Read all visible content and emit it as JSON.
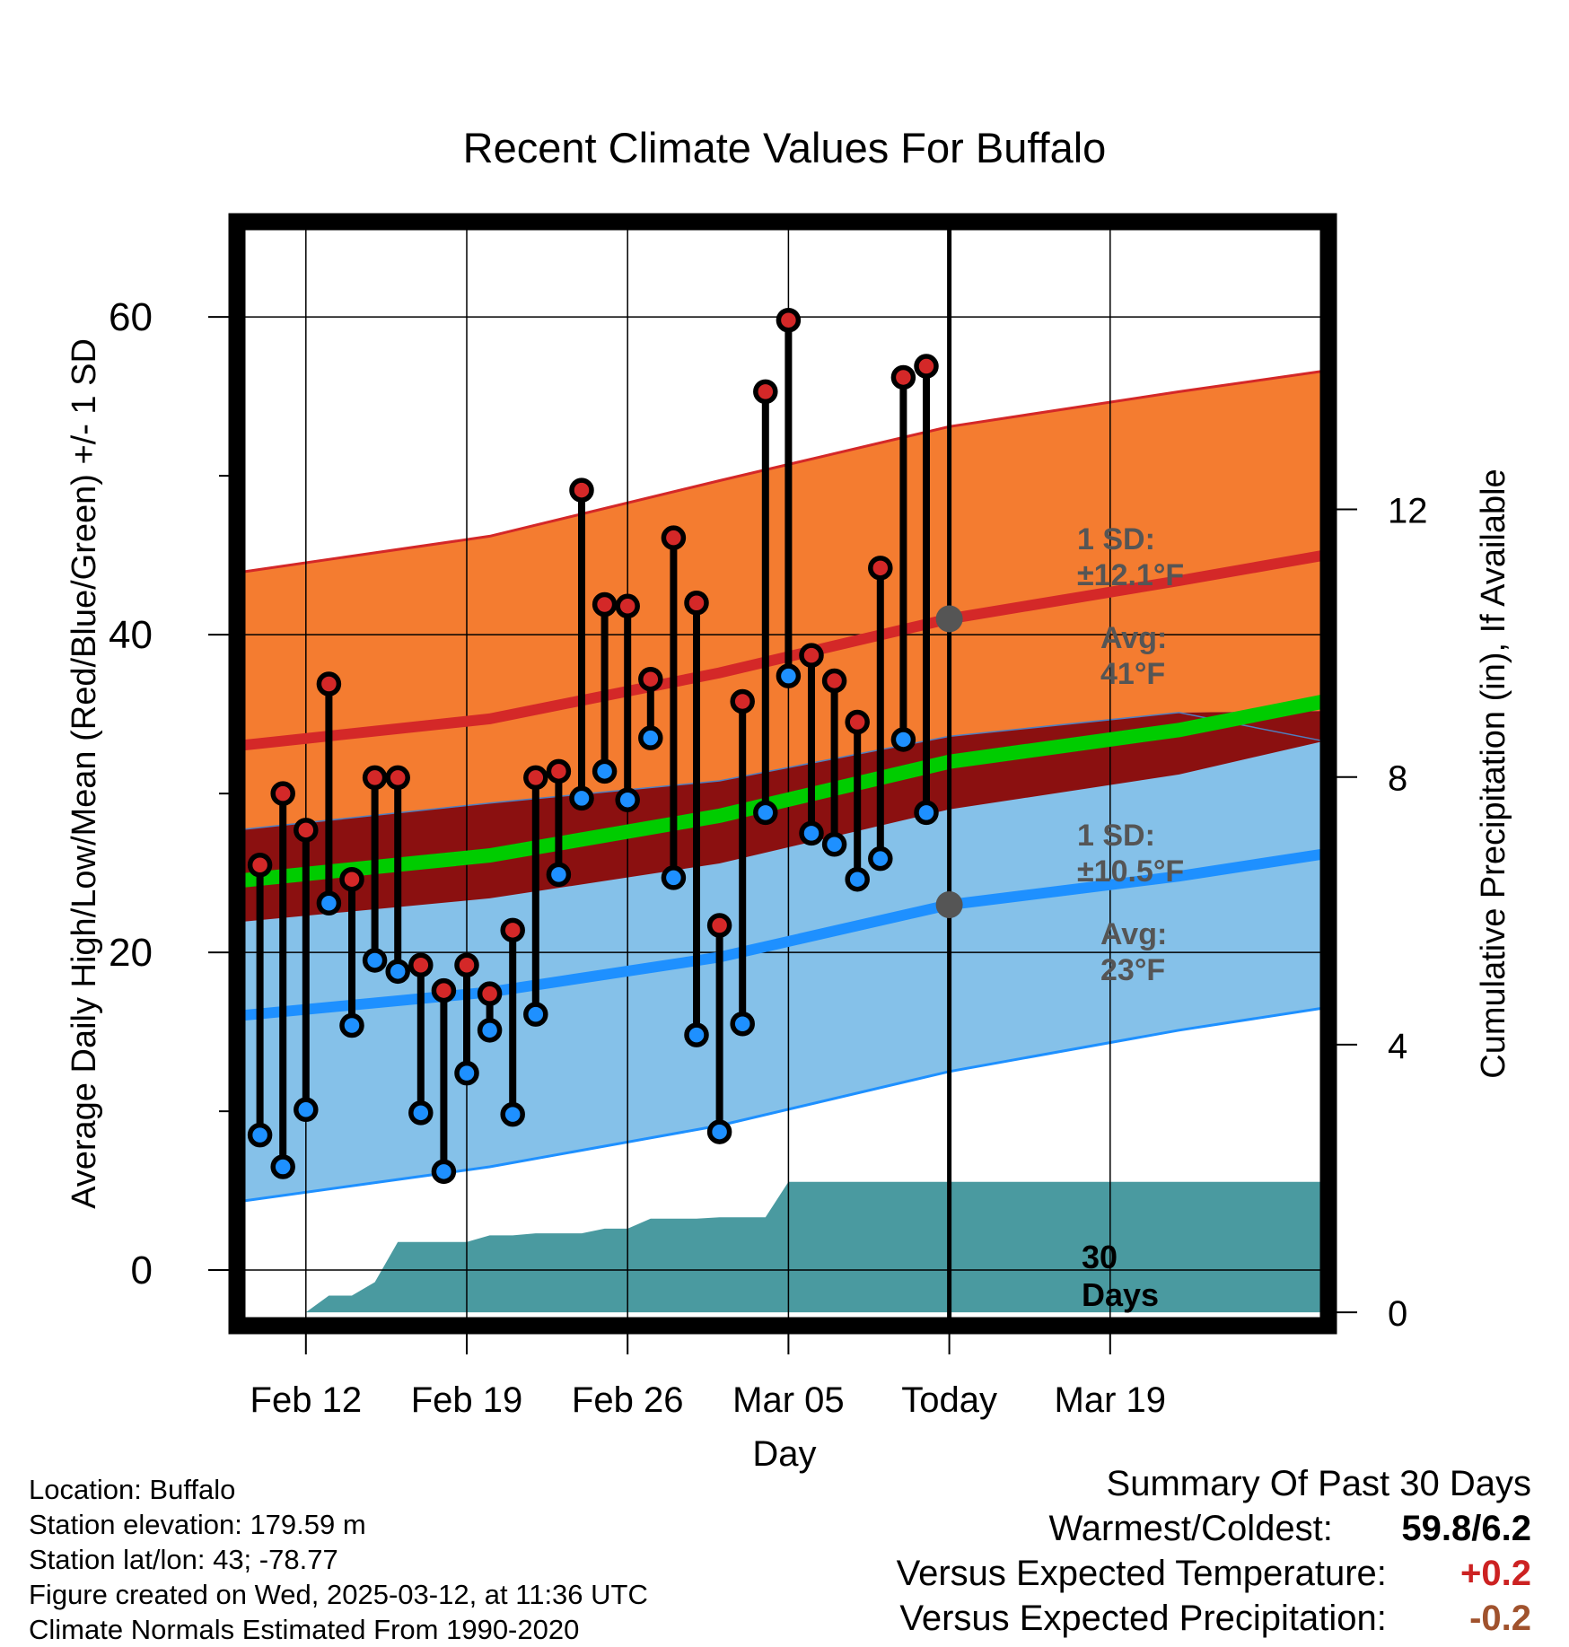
{
  "chart_data": {
    "type": "line",
    "title": "Recent Climate Values For Buffalo",
    "xlabel": "Day",
    "ylabel": "Average Daily High/Low/Mean (Red/Blue/Green) +/- 1 SD",
    "y2label": "Cumulative Precipitation (in), If Available",
    "xlim": [
      -1.0,
      46.5
    ],
    "ylim": [
      -3.5,
      66
    ],
    "y2lim": [
      -0.2,
      16.3
    ],
    "yticks": [
      0,
      20,
      40,
      60
    ],
    "yminorticks": [
      10,
      30,
      50
    ],
    "y2ticks": [
      0,
      4,
      8,
      12
    ],
    "xticks": [
      {
        "day": 2,
        "label": "Feb 12"
      },
      {
        "day": 9,
        "label": "Feb 19"
      },
      {
        "day": 16,
        "label": "Feb 26"
      },
      {
        "day": 23,
        "label": "Mar 05"
      },
      {
        "day": 30,
        "label": "Today"
      },
      {
        "day": 37,
        "label": "Mar 19"
      }
    ],
    "grid": true,
    "colors": {
      "high_band": "#f47c30",
      "high_avg_line": "#d42828",
      "low_band": "#85c1e9",
      "low_avg_line": "#1e90ff",
      "overlap_band": "#8b1010",
      "mean_line": "#00cc00",
      "precip": "#4a9aa0",
      "high_marker": "#d42828",
      "low_marker": "#1e90ff",
      "annotation": "#555555",
      "plus": "#cc2222",
      "minus": "#a0522d"
    },
    "normals": {
      "x": [
        -1,
        10,
        20,
        30,
        40,
        46.3
      ],
      "high_avg": [
        33.0,
        34.7,
        37.6,
        41.0,
        43.4,
        45.0
      ],
      "high_upper": [
        43.9,
        46.2,
        49.7,
        53.1,
        55.3,
        56.6
      ],
      "high_lower": [
        27.7,
        29.4,
        30.8,
        33.6,
        35.1,
        35.2
      ],
      "low_avg": [
        16.0,
        17.5,
        19.7,
        23.0,
        24.8,
        26.2
      ],
      "low_upper": [
        27.7,
        29.4,
        30.8,
        33.6,
        35.1,
        33.3
      ],
      "low_lower": [
        4.3,
        6.5,
        9.1,
        12.5,
        15.1,
        16.5
      ],
      "mean": [
        24.5,
        26.1,
        28.6,
        32.0,
        34.0,
        35.8
      ],
      "overlap_lower": [
        21.9,
        23.4,
        25.6,
        29.0,
        31.2,
        33.3
      ]
    },
    "series": [
      {
        "name": "High",
        "x": [
          0,
          1,
          2,
          3,
          4,
          5,
          6,
          7,
          8,
          9,
          10,
          11,
          12,
          13,
          14,
          15,
          16,
          17,
          18,
          19,
          20,
          21,
          22,
          23,
          24,
          25,
          26,
          27,
          28,
          29
        ],
        "values": [
          25.5,
          30.0,
          27.7,
          36.9,
          24.6,
          31.0,
          31.0,
          19.2,
          17.6,
          19.2,
          17.4,
          21.4,
          31.0,
          31.4,
          49.1,
          41.9,
          41.8,
          37.2,
          46.1,
          42.0,
          21.7,
          35.8,
          55.3,
          59.8,
          38.7,
          37.1,
          34.5,
          44.2,
          56.2,
          56.9
        ]
      },
      {
        "name": "Low",
        "x": [
          0,
          1,
          2,
          3,
          4,
          5,
          6,
          7,
          8,
          9,
          10,
          11,
          12,
          13,
          14,
          15,
          16,
          17,
          18,
          19,
          20,
          21,
          22,
          23,
          24,
          25,
          26,
          27,
          28,
          29
        ],
        "values": [
          8.5,
          6.5,
          10.1,
          23.1,
          15.4,
          19.5,
          18.8,
          9.9,
          6.2,
          12.4,
          15.1,
          9.8,
          16.1,
          24.9,
          29.7,
          31.4,
          29.6,
          33.5,
          24.7,
          14.8,
          8.7,
          15.5,
          28.8,
          37.4,
          27.5,
          26.8,
          24.6,
          25.9,
          33.4,
          28.8
        ]
      },
      {
        "name": "Precipitation",
        "x": [
          2,
          3,
          4,
          5,
          6,
          7,
          8,
          9,
          10,
          11,
          12,
          13,
          14,
          15,
          16,
          17,
          18,
          19,
          20,
          21,
          22,
          23,
          24,
          25,
          26,
          27,
          28,
          29,
          30,
          46.3
        ],
        "values": [
          0,
          0.25,
          0.25,
          0.45,
          1.05,
          1.05,
          1.05,
          1.05,
          1.15,
          1.15,
          1.18,
          1.18,
          1.18,
          1.25,
          1.25,
          1.4,
          1.4,
          1.4,
          1.42,
          1.42,
          1.42,
          1.95,
          1.95,
          1.95,
          1.95,
          1.95,
          1.95,
          1.95,
          1.95,
          1.95
        ]
      }
    ],
    "annotations": {
      "high_sd_title": "1 SD:",
      "high_sd_value": "±12.1°F",
      "high_avg_title": "Avg:",
      "high_avg_value": "41°F",
      "high_avg_y": 41,
      "low_sd_title": "1 SD:",
      "low_sd_value": "±10.5°F",
      "low_avg_title": "Avg:",
      "low_avg_value": "23°F",
      "low_avg_y": 23,
      "period_line1": "30",
      "period_line2": "Days",
      "today_day": 30
    }
  },
  "footer": {
    "location": "Location: Buffalo",
    "elevation": "Station elevation: 179.59 m",
    "latlon": "Station lat/lon: 43; -78.77",
    "created": "Figure created on Wed, 2025-03-12, at 11:36 UTC",
    "normals": "Climate Normals Estimated From 1990-2020"
  },
  "summary": {
    "title": "Summary Of Past 30 Days",
    "warm_cold_label": "Warmest/Coldest:",
    "warm_cold_value": "59.8/6.2",
    "temp_label": "Versus Expected Temperature:",
    "temp_value": "+0.2",
    "precip_label": "Versus Expected Precipitation:",
    "precip_value": "-0.2"
  }
}
